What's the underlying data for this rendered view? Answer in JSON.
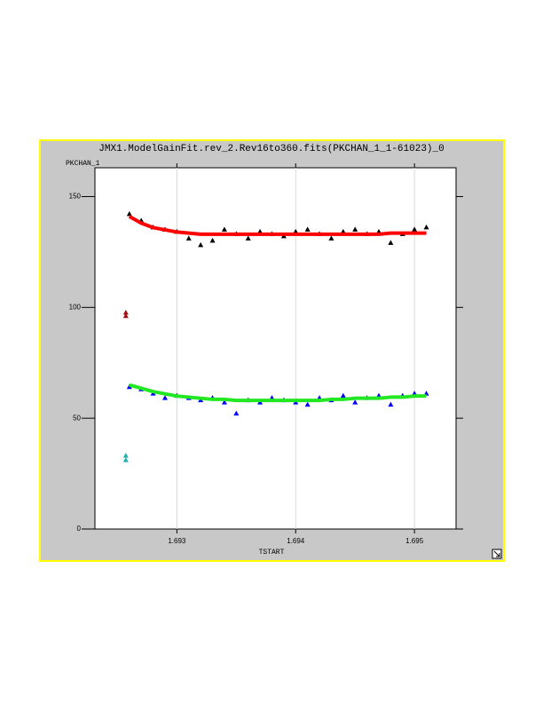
{
  "chart_data": {
    "type": "scatter",
    "title": "JMX1.ModelGainFit.rev_2.Rev16to360.fits(PKCHAN_1_1-61023)_0",
    "y_label": "PKCHAN_1",
    "x_label": "TSTART",
    "xlim": [
      1.69231,
      1.69535
    ],
    "ylim": [
      0,
      163
    ],
    "xticks": [
      1.693,
      1.694,
      1.695
    ],
    "yticks": [
      0,
      50,
      100,
      150
    ],
    "grid": "x",
    "plot_background": "#ffffff",
    "panel_background": "#c8c8c8",
    "border_color": "#ffff00",
    "series": [
      {
        "style": "markers",
        "color": "#000000",
        "x": [
          1.6926,
          1.6927,
          1.6928,
          1.6929,
          1.693,
          1.6931,
          1.6932,
          1.6933,
          1.6934,
          1.6935,
          1.6936,
          1.6937,
          1.6938,
          1.6939,
          1.694,
          1.6941,
          1.6942,
          1.6943,
          1.6944,
          1.6945,
          1.6946,
          1.6947,
          1.6948,
          1.6949,
          1.695,
          1.6951
        ],
        "values": [
          142,
          139,
          136,
          135,
          134,
          131,
          128,
          130,
          135,
          133,
          131,
          134,
          133,
          132,
          134,
          135,
          133,
          131,
          134,
          135,
          133,
          134,
          129,
          133,
          135,
          136
        ]
      },
      {
        "style": "markers",
        "color": "#0000ff",
        "x": [
          1.6926,
          1.6927,
          1.6928,
          1.6929,
          1.693,
          1.6931,
          1.6932,
          1.6933,
          1.6934,
          1.6935,
          1.6936,
          1.6937,
          1.6938,
          1.6939,
          1.694,
          1.6941,
          1.6942,
          1.6943,
          1.6944,
          1.6945,
          1.6946,
          1.6947,
          1.6948,
          1.6949,
          1.695,
          1.6951
        ],
        "values": [
          64,
          63,
          61,
          59,
          60,
          59,
          58,
          59,
          57,
          52,
          58,
          57,
          59,
          58,
          57,
          56,
          59,
          58,
          60,
          57,
          59,
          60,
          56,
          60,
          61,
          61
        ]
      },
      {
        "style": "line",
        "color": "#ff0000",
        "x": [
          1.6926,
          1.6927,
          1.6928,
          1.6929,
          1.693,
          1.6931,
          1.6932,
          1.6933,
          1.6934,
          1.6935,
          1.6936,
          1.6937,
          1.6938,
          1.6939,
          1.694,
          1.6941,
          1.6942,
          1.6943,
          1.6944,
          1.6945,
          1.6946,
          1.6947,
          1.6948,
          1.6949,
          1.695,
          1.6951
        ],
        "values": [
          141,
          138,
          136,
          135,
          134,
          133.5,
          133,
          133,
          133,
          133,
          133,
          133,
          133,
          133,
          133,
          133,
          133,
          133,
          133,
          133,
          133,
          133,
          133.5,
          133.5,
          133.5,
          133.5
        ]
      },
      {
        "style": "line",
        "color": "#22e822",
        "x": [
          1.6926,
          1.6927,
          1.6928,
          1.6929,
          1.693,
          1.6931,
          1.6932,
          1.6933,
          1.6934,
          1.6935,
          1.6936,
          1.6937,
          1.6938,
          1.6939,
          1.694,
          1.6941,
          1.6942,
          1.6943,
          1.6944,
          1.6945,
          1.6946,
          1.6947,
          1.6948,
          1.6949,
          1.695,
          1.6951
        ],
        "values": [
          65,
          63.5,
          62,
          61,
          60,
          59.5,
          59,
          58.5,
          58.5,
          58,
          58,
          58,
          58,
          58,
          58,
          58,
          58,
          58.5,
          58.5,
          59,
          59,
          59,
          59.5,
          59.5,
          60,
          60
        ]
      },
      {
        "style": "markers",
        "color": "#a01010",
        "x": [
          1.69257,
          1.69257
        ],
        "values": [
          97.5,
          96
        ]
      },
      {
        "style": "markers",
        "color": "#20b0b0",
        "x": [
          1.69257,
          1.69257
        ],
        "values": [
          33,
          31
        ]
      }
    ]
  }
}
